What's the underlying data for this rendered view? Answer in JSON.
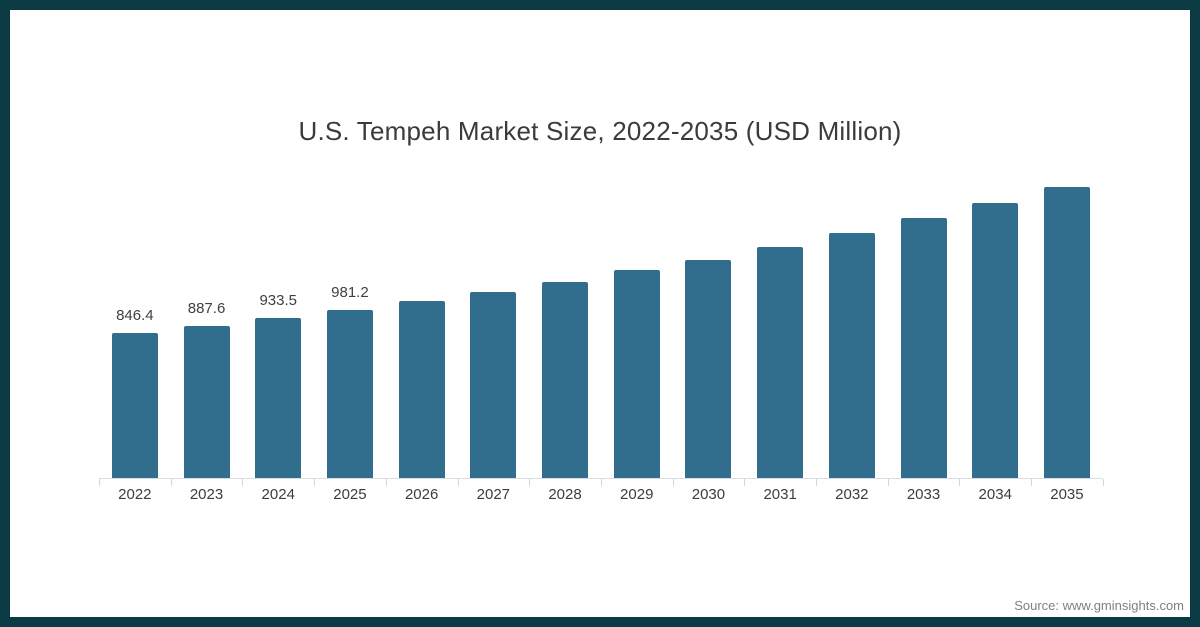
{
  "title": "U.S. Tempeh Market Size, 2022-2035 (USD Million)",
  "source_credit": "Source: www.gminsights.com",
  "colors": {
    "frame_border": "#0b3944",
    "background": "#ffffff",
    "bar_fill": "#316e8d",
    "axis_line": "#d8dde2",
    "title_text": "#3b3b3b",
    "axis_label_text": "#3d3d3d",
    "value_label_text": "#404040",
    "source_text": "#808080"
  },
  "chart_data": {
    "type": "bar",
    "title": "U.S. Tempeh Market Size, 2022-2035 (USD Million)",
    "unit": "USD Million",
    "categories": [
      "2022",
      "2023",
      "2024",
      "2025",
      "2026",
      "2027",
      "2028",
      "2029",
      "2030",
      "2031",
      "2032",
      "2033",
      "2034",
      "2035"
    ],
    "values": [
      846.4,
      887.6,
      933.5,
      981.2,
      1031,
      1088,
      1143,
      1215,
      1272,
      1347,
      1428,
      1515,
      1605,
      1700
    ],
    "value_labels": [
      "846.4",
      "887.6",
      "933.5",
      "981.2",
      "",
      "",
      "",
      "",
      "",
      "",
      "",
      "",
      "",
      ""
    ],
    "xlabel": "",
    "ylabel": "",
    "ylim": [
      0,
      1800
    ],
    "grid": false,
    "legend": false,
    "bar_color": "#316e8d"
  }
}
